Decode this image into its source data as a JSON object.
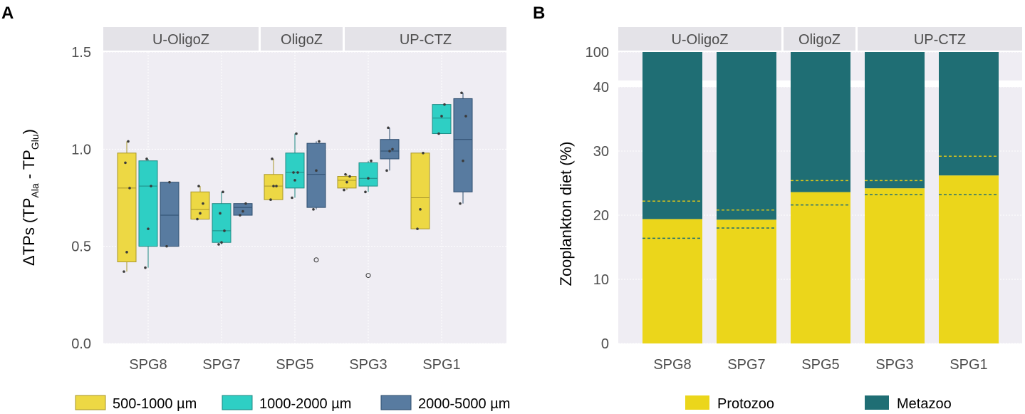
{
  "chart_data": [
    {
      "panel_letter": "A",
      "type": "box",
      "ylabel_parts": [
        "ΔTPs (TP",
        "Ala",
        " - TP",
        "Glu",
        ")"
      ],
      "ylim": [
        0,
        1.5
      ],
      "yticks": [
        0.0,
        0.5,
        1.0,
        1.5
      ],
      "ytick_labels": [
        "0.0",
        "0.5",
        "1.0",
        "1.5"
      ],
      "categories": [
        "SPG8",
        "SPG7",
        "SPG5",
        "SPG3",
        "SPG1"
      ],
      "facets": [
        {
          "label": "U-OligoZ",
          "categories": [
            "SPG8",
            "SPG7"
          ]
        },
        {
          "label": "OligoZ",
          "categories": [
            "SPG5"
          ]
        },
        {
          "label": "UP-CTZ",
          "categories": [
            "SPG3",
            "SPG1"
          ]
        }
      ],
      "series": [
        {
          "name": "500-1000 µm",
          "color": "#EDD844",
          "stroke": "#A8962A",
          "boxes": [
            {
              "q1": 0.42,
              "median": 0.8,
              "q3": 0.98,
              "whislo": 0.37,
              "whishi": 1.04,
              "points": [
                0.37,
                0.47,
                0.8,
                0.93,
                1.04
              ],
              "outliers": []
            },
            {
              "q1": 0.64,
              "median": 0.69,
              "q3": 0.78,
              "whislo": 0.64,
              "whishi": 0.81,
              "points": [
                0.64,
                0.67,
                0.72,
                0.81
              ],
              "outliers": []
            },
            {
              "q1": 0.74,
              "median": 0.81,
              "q3": 0.87,
              "whislo": 0.74,
              "whishi": 0.95,
              "points": [
                0.74,
                0.81,
                0.81,
                0.95
              ],
              "outliers": []
            },
            {
              "q1": 0.8,
              "median": 0.84,
              "q3": 0.86,
              "whislo": 0.79,
              "whishi": 0.87,
              "points": [
                0.79,
                0.83,
                0.86,
                0.87
              ],
              "outliers": []
            },
            {
              "q1": 0.59,
              "median": 0.75,
              "q3": 0.98,
              "whislo": 0.59,
              "whishi": 0.98,
              "points": [
                0.59,
                0.69,
                0.98
              ],
              "outliers": []
            }
          ]
        },
        {
          "name": "1000-2000 µm",
          "color": "#2ECFC4",
          "stroke": "#1F8A83",
          "boxes": [
            {
              "q1": 0.5,
              "median": 0.81,
              "q3": 0.94,
              "whislo": 0.39,
              "whishi": 0.95,
              "points": [
                0.39,
                0.59,
                0.81,
                0.95
              ],
              "outliers": []
            },
            {
              "q1": 0.52,
              "median": 0.58,
              "q3": 0.72,
              "whislo": 0.51,
              "whishi": 0.78,
              "points": [
                0.51,
                0.52,
                0.58,
                0.67,
                0.78
              ],
              "outliers": []
            },
            {
              "q1": 0.8,
              "median": 0.88,
              "q3": 0.98,
              "whislo": 0.75,
              "whishi": 1.08,
              "points": [
                0.75,
                0.84,
                0.88,
                0.88,
                1.08
              ],
              "outliers": []
            },
            {
              "q1": 0.81,
              "median": 0.85,
              "q3": 0.93,
              "whislo": 0.78,
              "whishi": 0.94,
              "points": [
                0.78,
                0.85,
                0.94
              ],
              "outliers": [
                0.35
              ]
            },
            {
              "q1": 1.08,
              "median": 1.16,
              "q3": 1.23,
              "whislo": 1.08,
              "whishi": 1.23,
              "points": [
                1.08,
                1.17,
                1.23
              ],
              "outliers": []
            }
          ]
        },
        {
          "name": "2000-5000 µm",
          "color": "#587BA0",
          "stroke": "#2D4D6E",
          "boxes": [
            {
              "q1": 0.5,
              "median": 0.66,
              "q3": 0.83,
              "whislo": 0.5,
              "whishi": 0.83,
              "points": [
                0.5,
                0.83
              ],
              "outliers": []
            },
            {
              "q1": 0.66,
              "median": 0.7,
              "q3": 0.72,
              "whislo": 0.66,
              "whishi": 0.72,
              "points": [
                0.66,
                0.68,
                0.72
              ],
              "outliers": []
            },
            {
              "q1": 0.7,
              "median": 0.87,
              "q3": 1.03,
              "whislo": 0.69,
              "whishi": 1.04,
              "points": [
                0.69,
                0.89,
                1.04
              ],
              "outliers": [
                0.43
              ]
            },
            {
              "q1": 0.95,
              "median": 0.99,
              "q3": 1.05,
              "whislo": 0.89,
              "whishi": 1.11,
              "points": [
                0.89,
                0.99,
                1.0,
                1.11
              ],
              "outliers": []
            },
            {
              "q1": 0.78,
              "median": 1.05,
              "q3": 1.26,
              "whislo": 0.72,
              "whishi": 1.29,
              "points": [
                0.72,
                0.94,
                1.17,
                1.29
              ],
              "outliers": []
            }
          ]
        }
      ]
    },
    {
      "panel_letter": "B",
      "type": "stacked_bar",
      "ylabel": "Zooplankton diet (%)",
      "yticks": [
        0,
        10,
        20,
        30,
        40,
        100
      ],
      "ytick_labels": [
        "0",
        "10",
        "20",
        "30",
        "40",
        "100"
      ],
      "axis_break": {
        "lower_range": [
          0,
          40
        ],
        "upper_range": [
          40,
          100
        ]
      },
      "categories": [
        "SPG8",
        "SPG7",
        "SPG5",
        "SPG3",
        "SPG1"
      ],
      "facets": [
        {
          "label": "U-OligoZ",
          "categories": [
            "SPG8",
            "SPG7"
          ]
        },
        {
          "label": "OligoZ",
          "categories": [
            "SPG5"
          ]
        },
        {
          "label": "UP-CTZ",
          "categories": [
            "SPG3",
            "SPG1"
          ]
        }
      ],
      "series": [
        {
          "name": "Protozoo",
          "color": "#EBD61B",
          "values": [
            19.4,
            19.3,
            23.6,
            24.2,
            26.2
          ]
        },
        {
          "name": "Metazoo",
          "color": "#1F6E74",
          "values": [
            80.6,
            80.7,
            76.4,
            75.8,
            73.8
          ]
        }
      ],
      "interval_lines": {
        "upper": {
          "color": "#D9C41A",
          "values": [
            22.2,
            20.8,
            25.4,
            25.4,
            29.2
          ]
        },
        "lower": {
          "color": "#1F6E74",
          "values": [
            16.4,
            18.0,
            21.6,
            23.2,
            23.2
          ]
        }
      }
    }
  ],
  "legend_a": [
    {
      "label": "500-1000 µm",
      "color": "#EDD844",
      "stroke": "#A8962A"
    },
    {
      "label": "1000-2000 µm",
      "color": "#2ECFC4",
      "stroke": "#1F8A83"
    },
    {
      "label": "2000-5000 µm",
      "color": "#587BA0",
      "stroke": "#2D4D6E"
    }
  ],
  "legend_b": [
    {
      "label": "Protozoo",
      "color": "#EBD61B"
    },
    {
      "label": "Metazoo",
      "color": "#1F6E74"
    }
  ],
  "colors": {
    "panel_bg": "#EFEDF3",
    "strip_bg": "#E4E3E8",
    "grid": "#FFFFFF",
    "tick_text": "#4D4D4D"
  }
}
